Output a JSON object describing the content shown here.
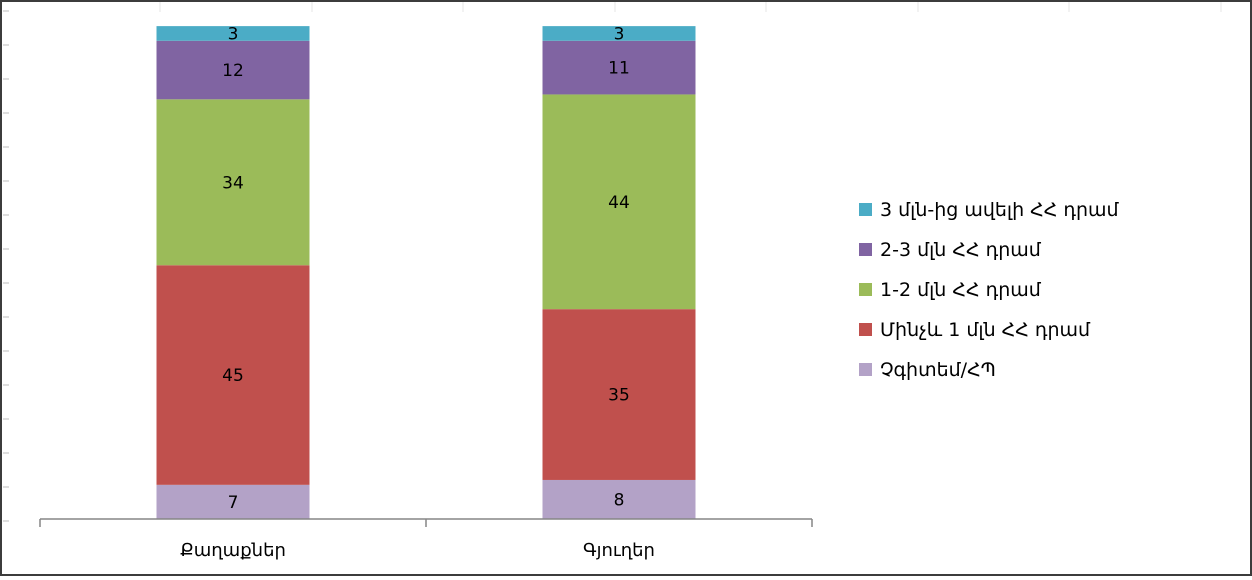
{
  "chart_data": {
    "type": "bar",
    "stacked": true,
    "percent": true,
    "title": "",
    "xlabel": "",
    "ylabel": "",
    "ylim": [
      0,
      100
    ],
    "grid": true,
    "legend_position": "right",
    "categories": [
      "Քաղաքներ",
      "Գյուղեր"
    ],
    "series": [
      {
        "name": "Չգիտեմ/ՀՊ",
        "values": [
          7,
          8
        ],
        "color": "#b3a2c7"
      },
      {
        "name": "Մինչև 1 մլն ՀՀ դրամ",
        "values": [
          45,
          35
        ],
        "color": "#c0504d"
      },
      {
        "name": "1-2 մլն ՀՀ դրամ",
        "values": [
          34,
          44
        ],
        "color": "#9bbb59"
      },
      {
        "name": "2-3 մլն ՀՀ դրամ",
        "values": [
          12,
          11
        ],
        "color": "#8064a2"
      },
      {
        "name": "3 մլն-ից ավելի ՀՀ դրամ",
        "values": [
          3,
          3
        ],
        "color": "#4bacc6"
      }
    ]
  }
}
